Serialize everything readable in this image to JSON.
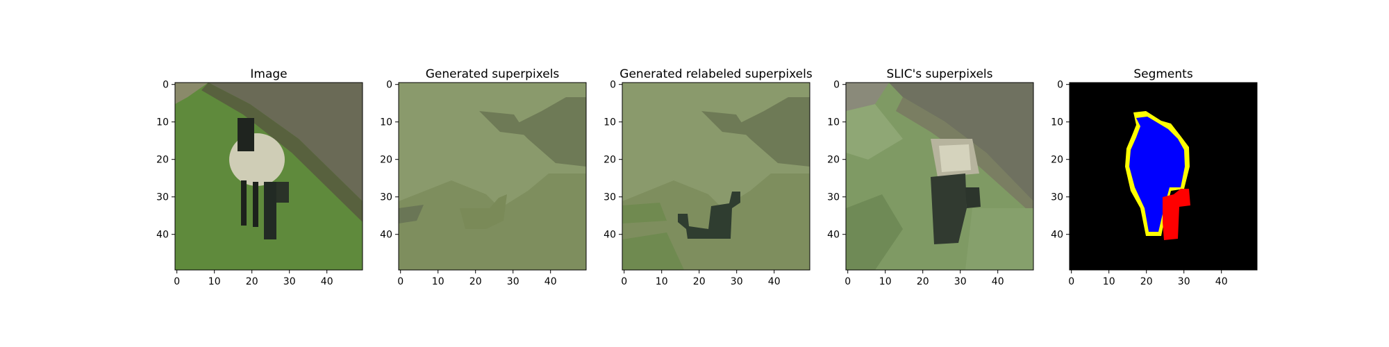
{
  "figure": {
    "panels": [
      {
        "id": "image",
        "title": "Image"
      },
      {
        "id": "generated",
        "title": "Generated superpixels"
      },
      {
        "id": "relabeled",
        "title": "Generated relabeled superpixels"
      },
      {
        "id": "slic",
        "title": "SLIC's superpixels"
      },
      {
        "id": "segments",
        "title": "Segments"
      }
    ]
  },
  "chart_data": [
    {
      "type": "heatmap",
      "title": "Image",
      "xlabel": "",
      "ylabel": "",
      "xlim": [
        0,
        49
      ],
      "ylim": [
        49,
        0
      ],
      "xticks": [
        0,
        10,
        20,
        30,
        40
      ],
      "yticks": [
        0,
        10,
        20,
        30,
        40
      ],
      "content": "photo of a sheep on a grassy slope"
    },
    {
      "type": "heatmap",
      "title": "Generated superpixels",
      "xlabel": "",
      "ylabel": "",
      "xlim": [
        0,
        49
      ],
      "ylim": [
        49,
        0
      ],
      "xticks": [
        0,
        10,
        20,
        30,
        40
      ],
      "yticks": [
        0,
        10,
        20,
        30,
        40
      ],
      "colors": [
        "#8a9a6c",
        "#7e8e5e",
        "#6e7a56",
        "#6a7656"
      ]
    },
    {
      "type": "heatmap",
      "title": "Generated relabeled superpixels",
      "xlabel": "",
      "ylabel": "",
      "xlim": [
        0,
        49
      ],
      "ylim": [
        49,
        0
      ],
      "xticks": [
        0,
        10,
        20,
        30,
        40
      ],
      "yticks": [
        0,
        10,
        20,
        30,
        40
      ],
      "colors": [
        "#8a9a6c",
        "#7e8e5e",
        "#6e7a56",
        "#708a50",
        "#2f3d30"
      ]
    },
    {
      "type": "heatmap",
      "title": "SLIC's superpixels",
      "xlabel": "",
      "ylabel": "",
      "xlim": [
        0,
        49
      ],
      "ylim": [
        49,
        0
      ],
      "xticks": [
        0,
        10,
        20,
        30,
        40
      ],
      "yticks": [
        0,
        10,
        20,
        30,
        40
      ],
      "colors": [
        "#7f9a64",
        "#8fa775",
        "#6f8a56",
        "#b7b49e",
        "#d5d3bd",
        "#313a30",
        "#6f7160",
        "#8a8a7a"
      ]
    },
    {
      "type": "heatmap",
      "title": "Segments",
      "xlabel": "",
      "ylabel": "",
      "xlim": [
        0,
        49
      ],
      "ylim": [
        49,
        0
      ],
      "xticks": [
        0,
        10,
        20,
        30,
        40
      ],
      "yticks": [
        0,
        10,
        20,
        30,
        40
      ],
      "colors": {
        "background": "#000000",
        "body": "#0000ff",
        "legs": "#ff0000",
        "boundary": "#ffff00"
      }
    }
  ]
}
